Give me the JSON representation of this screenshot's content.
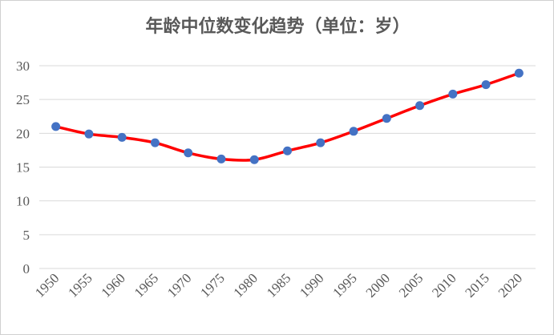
{
  "chart_data": {
    "type": "line",
    "title": "年龄中位数变化趋势（单位：岁）",
    "xlabel": "",
    "ylabel": "",
    "ylim": [
      0,
      30
    ],
    "yticks": [
      0,
      5,
      10,
      15,
      20,
      25,
      30
    ],
    "grid": true,
    "legend": "none",
    "categories": [
      "1950",
      "1955",
      "1960",
      "1965",
      "1970",
      "1975",
      "1980",
      "1985",
      "1990",
      "1995",
      "2000",
      "2005",
      "2010",
      "2015",
      "2020"
    ],
    "series": [
      {
        "values": [
          21.0,
          19.9,
          19.4,
          18.6,
          17.1,
          16.2,
          16.1,
          17.4,
          18.6,
          20.3,
          22.2,
          24.1,
          25.8,
          27.2,
          28.9
        ],
        "line_color": "#ff0000",
        "marker_color": "#4472c4"
      }
    ],
    "colors": {
      "grid": "#d9d9d9",
      "text": "#595959"
    }
  }
}
